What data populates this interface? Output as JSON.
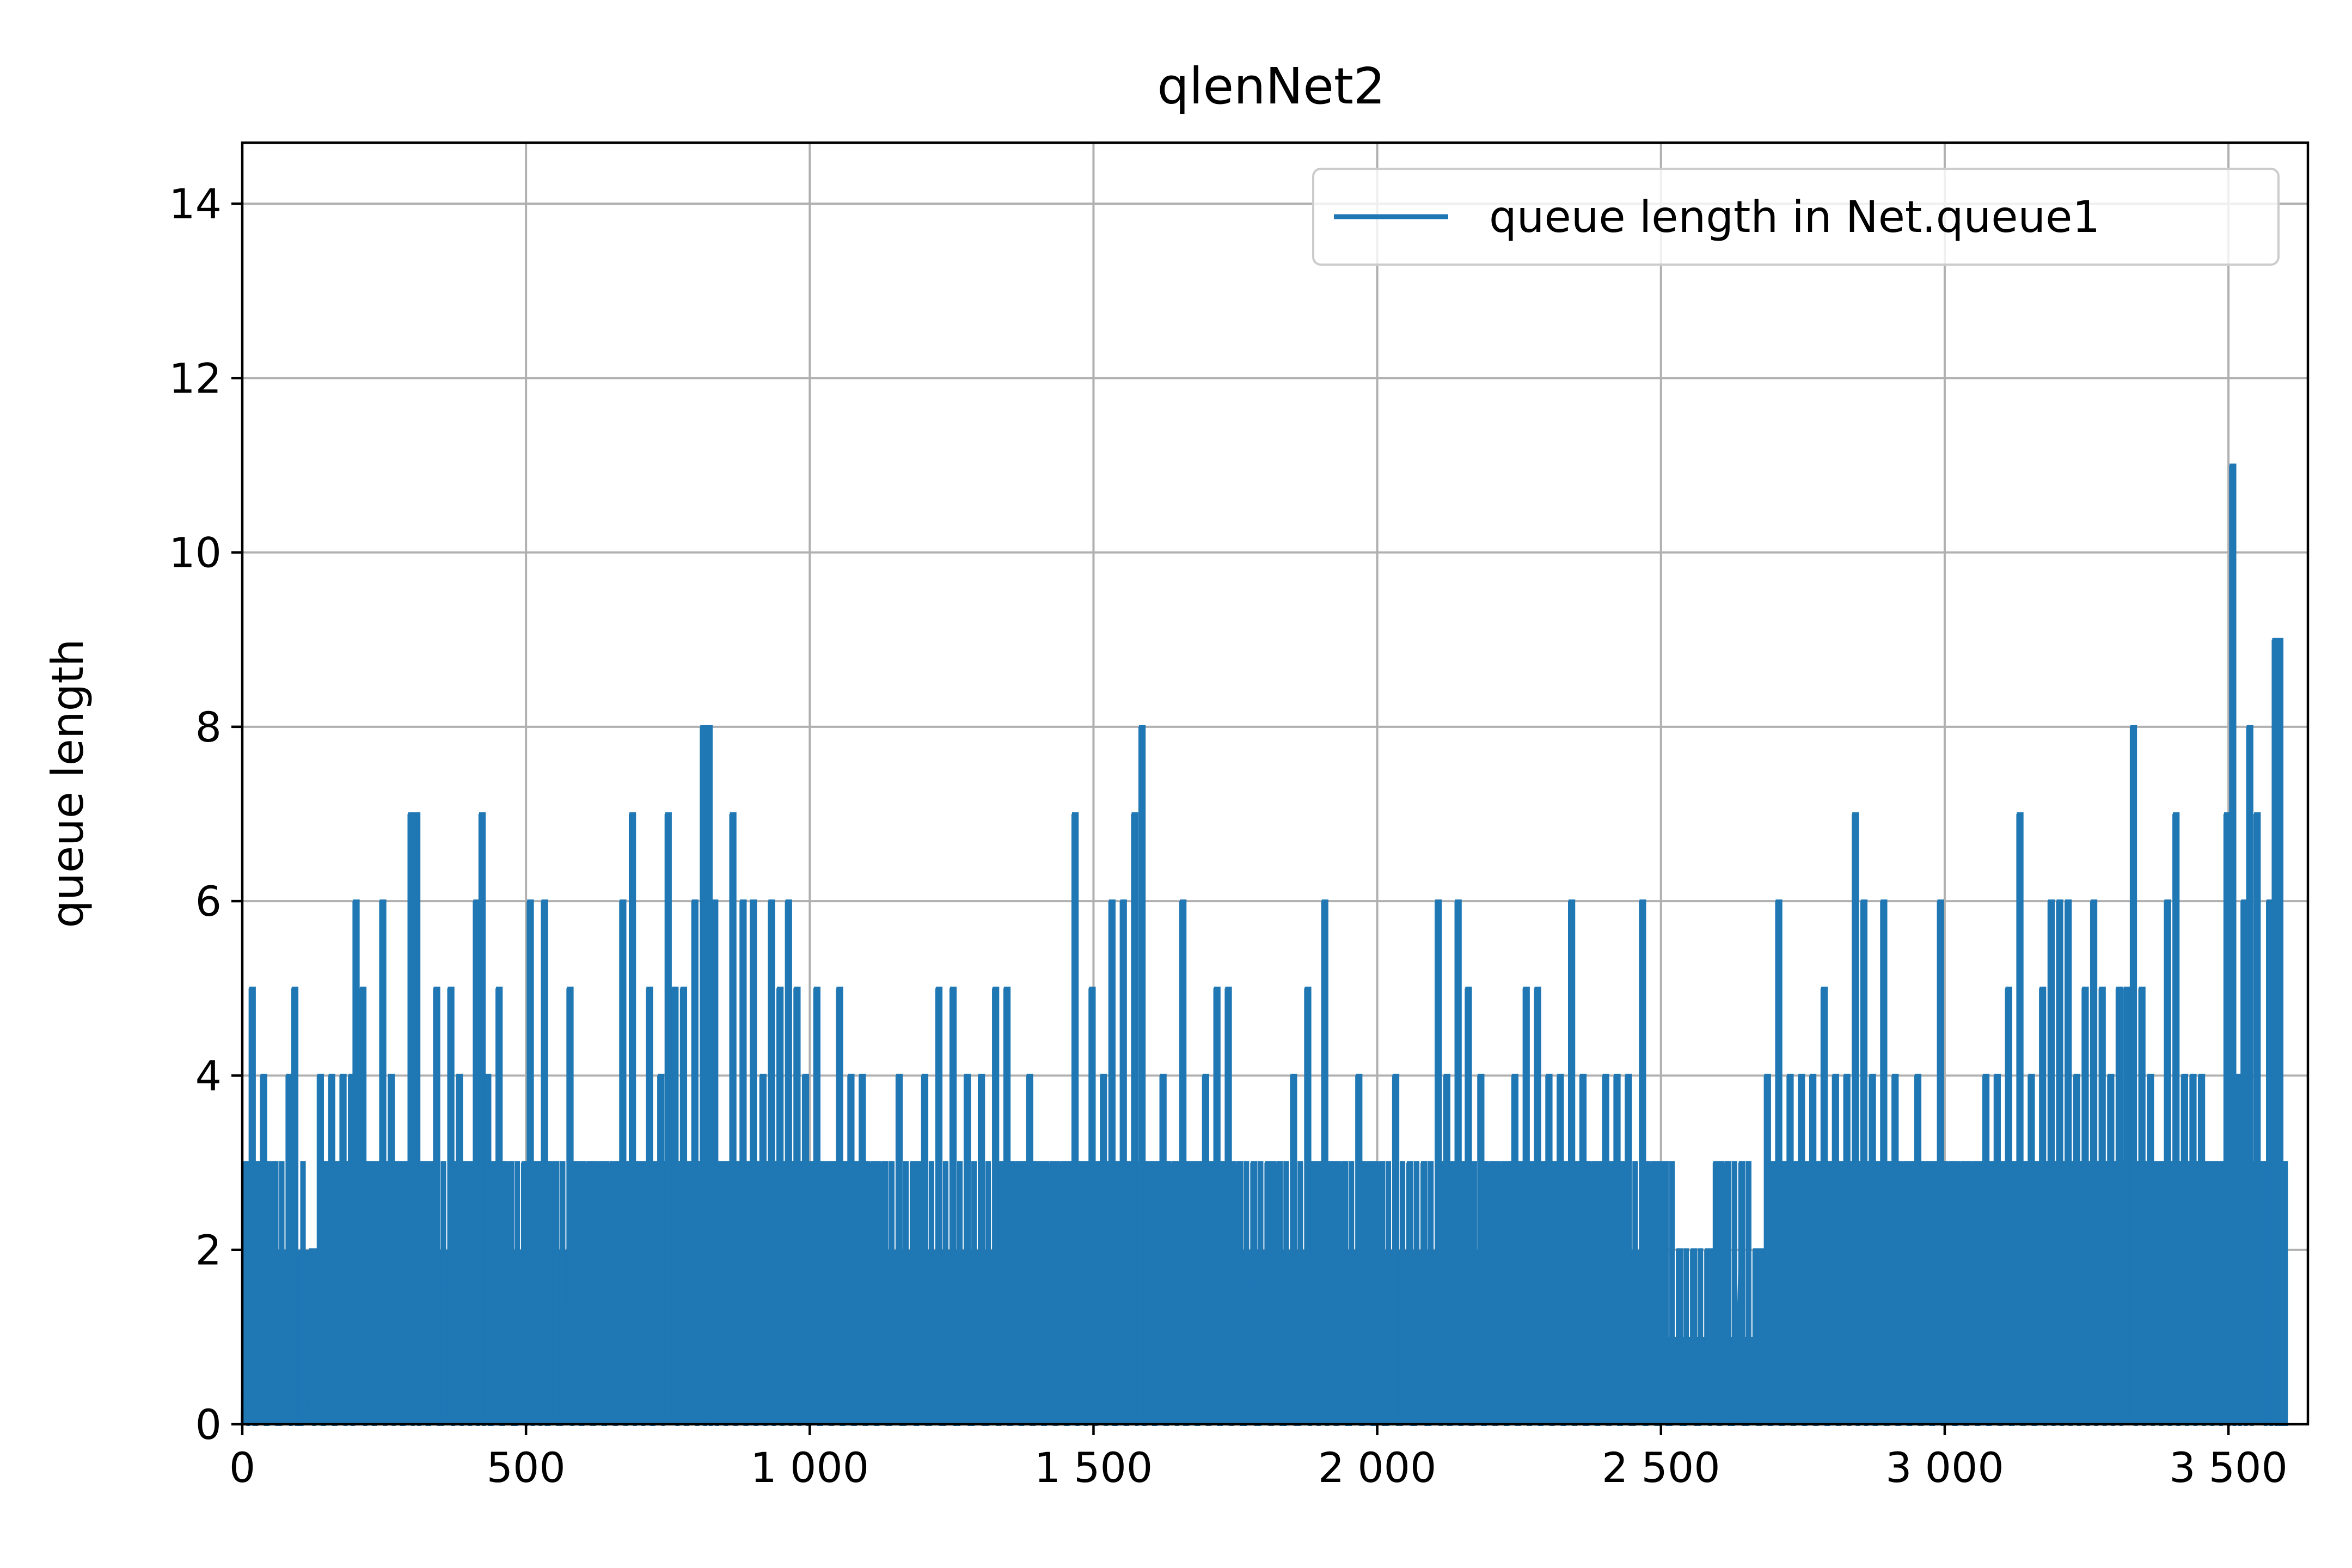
{
  "chart_data": {
    "type": "line",
    "title": "qlenNet2",
    "xlabel": "",
    "ylabel": "queue length",
    "xlim": [
      0,
      3640
    ],
    "ylim": [
      0,
      14.7
    ],
    "grid": true,
    "legend_position": "top-right",
    "x_ticks": [
      0,
      500,
      1000,
      1500,
      2000,
      2500,
      3000,
      3500
    ],
    "x_tick_labels": [
      "0",
      "500",
      "1 000",
      "1 500",
      "2 000",
      "2 500",
      "3 000",
      "3 500"
    ],
    "y_ticks": [
      0,
      2,
      4,
      6,
      8,
      10,
      12,
      14
    ],
    "y_tick_labels": [
      "0",
      "2",
      "4",
      "6",
      "8",
      "10",
      "12",
      "14"
    ],
    "series": [
      {
        "name": "queue length in Net.queue1",
        "color": "#1f77b4",
        "style": "steps-post",
        "x_end": 3600,
        "peaks": [
          {
            "x": 5,
            "y": 3
          },
          {
            "x": 15,
            "y": 5
          },
          {
            "x": 35,
            "y": 4
          },
          {
            "x": 55,
            "y": 3
          },
          {
            "x": 80,
            "y": 4
          },
          {
            "x": 90,
            "y": 5
          },
          {
            "x": 120,
            "y": 2
          },
          {
            "x": 135,
            "y": 4
          },
          {
            "x": 155,
            "y": 4
          },
          {
            "x": 175,
            "y": 4
          },
          {
            "x": 190,
            "y": 4
          },
          {
            "x": 198,
            "y": 6
          },
          {
            "x": 210,
            "y": 5
          },
          {
            "x": 225,
            "y": 3
          },
          {
            "x": 245,
            "y": 6
          },
          {
            "x": 260,
            "y": 4
          },
          {
            "x": 275,
            "y": 3
          },
          {
            "x": 295,
            "y": 7
          },
          {
            "x": 305,
            "y": 7
          },
          {
            "x": 320,
            "y": 3
          },
          {
            "x": 340,
            "y": 5
          },
          {
            "x": 365,
            "y": 5
          },
          {
            "x": 380,
            "y": 4
          },
          {
            "x": 395,
            "y": 3
          },
          {
            "x": 410,
            "y": 6
          },
          {
            "x": 420,
            "y": 7
          },
          {
            "x": 430,
            "y": 4
          },
          {
            "x": 450,
            "y": 5
          },
          {
            "x": 470,
            "y": 3
          },
          {
            "x": 495,
            "y": 3
          },
          {
            "x": 505,
            "y": 6
          },
          {
            "x": 520,
            "y": 3
          },
          {
            "x": 530,
            "y": 6
          },
          {
            "x": 550,
            "y": 3
          },
          {
            "x": 575,
            "y": 5
          },
          {
            "x": 590,
            "y": 3
          },
          {
            "x": 610,
            "y": 3
          },
          {
            "x": 630,
            "y": 3
          },
          {
            "x": 650,
            "y": 3
          },
          {
            "x": 668,
            "y": 6
          },
          {
            "x": 685,
            "y": 7
          },
          {
            "x": 700,
            "y": 3
          },
          {
            "x": 715,
            "y": 5
          },
          {
            "x": 735,
            "y": 4
          },
          {
            "x": 748,
            "y": 7
          },
          {
            "x": 760,
            "y": 5
          },
          {
            "x": 775,
            "y": 5
          },
          {
            "x": 795,
            "y": 6
          },
          {
            "x": 810,
            "y": 8
          },
          {
            "x": 820,
            "y": 8
          },
          {
            "x": 830,
            "y": 6
          },
          {
            "x": 845,
            "y": 3
          },
          {
            "x": 862,
            "y": 7
          },
          {
            "x": 880,
            "y": 6
          },
          {
            "x": 898,
            "y": 6
          },
          {
            "x": 915,
            "y": 4
          },
          {
            "x": 930,
            "y": 6
          },
          {
            "x": 945,
            "y": 5
          },
          {
            "x": 960,
            "y": 6
          },
          {
            "x": 975,
            "y": 5
          },
          {
            "x": 990,
            "y": 4
          },
          {
            "x": 1010,
            "y": 5
          },
          {
            "x": 1030,
            "y": 3
          },
          {
            "x": 1050,
            "y": 5
          },
          {
            "x": 1070,
            "y": 4
          },
          {
            "x": 1090,
            "y": 4
          },
          {
            "x": 1110,
            "y": 3
          },
          {
            "x": 1130,
            "y": 3
          },
          {
            "x": 1155,
            "y": 4
          },
          {
            "x": 1180,
            "y": 3
          },
          {
            "x": 1200,
            "y": 4
          },
          {
            "x": 1225,
            "y": 5
          },
          {
            "x": 1250,
            "y": 5
          },
          {
            "x": 1275,
            "y": 4
          },
          {
            "x": 1300,
            "y": 4
          },
          {
            "x": 1325,
            "y": 5
          },
          {
            "x": 1345,
            "y": 5
          },
          {
            "x": 1365,
            "y": 3
          },
          {
            "x": 1385,
            "y": 4
          },
          {
            "x": 1405,
            "y": 3
          },
          {
            "x": 1425,
            "y": 3
          },
          {
            "x": 1445,
            "y": 3
          },
          {
            "x": 1465,
            "y": 7
          },
          {
            "x": 1480,
            "y": 3
          },
          {
            "x": 1495,
            "y": 5
          },
          {
            "x": 1515,
            "y": 4
          },
          {
            "x": 1530,
            "y": 6
          },
          {
            "x": 1550,
            "y": 6
          },
          {
            "x": 1570,
            "y": 7
          },
          {
            "x": 1583,
            "y": 8
          },
          {
            "x": 1600,
            "y": 3
          },
          {
            "x": 1620,
            "y": 4
          },
          {
            "x": 1640,
            "y": 3
          },
          {
            "x": 1655,
            "y": 6
          },
          {
            "x": 1675,
            "y": 3
          },
          {
            "x": 1695,
            "y": 4
          },
          {
            "x": 1715,
            "y": 5
          },
          {
            "x": 1735,
            "y": 5
          },
          {
            "x": 1755,
            "y": 3
          },
          {
            "x": 1780,
            "y": 3
          },
          {
            "x": 1805,
            "y": 3
          },
          {
            "x": 1825,
            "y": 3
          },
          {
            "x": 1850,
            "y": 4
          },
          {
            "x": 1875,
            "y": 5
          },
          {
            "x": 1890,
            "y": 3
          },
          {
            "x": 1905,
            "y": 6
          },
          {
            "x": 1920,
            "y": 3
          },
          {
            "x": 1940,
            "y": 3
          },
          {
            "x": 1965,
            "y": 4
          },
          {
            "x": 1985,
            "y": 3
          },
          {
            "x": 2005,
            "y": 3
          },
          {
            "x": 2030,
            "y": 4
          },
          {
            "x": 2055,
            "y": 3
          },
          {
            "x": 2080,
            "y": 3
          },
          {
            "x": 2105,
            "y": 6
          },
          {
            "x": 2120,
            "y": 4
          },
          {
            "x": 2140,
            "y": 6
          },
          {
            "x": 2158,
            "y": 5
          },
          {
            "x": 2180,
            "y": 4
          },
          {
            "x": 2200,
            "y": 3
          },
          {
            "x": 2220,
            "y": 3
          },
          {
            "x": 2240,
            "y": 4
          },
          {
            "x": 2260,
            "y": 5
          },
          {
            "x": 2280,
            "y": 5
          },
          {
            "x": 2300,
            "y": 4
          },
          {
            "x": 2320,
            "y": 4
          },
          {
            "x": 2340,
            "y": 6
          },
          {
            "x": 2360,
            "y": 4
          },
          {
            "x": 2380,
            "y": 3
          },
          {
            "x": 2400,
            "y": 4
          },
          {
            "x": 2420,
            "y": 4
          },
          {
            "x": 2440,
            "y": 4
          },
          {
            "x": 2465,
            "y": 6
          },
          {
            "x": 2485,
            "y": 3
          },
          {
            "x": 2505,
            "y": 3
          },
          {
            "x": 2530,
            "y": 2
          },
          {
            "x": 2555,
            "y": 2
          },
          {
            "x": 2580,
            "y": 2
          },
          {
            "x": 2595,
            "y": 3
          },
          {
            "x": 2615,
            "y": 3
          },
          {
            "x": 2640,
            "y": 3
          },
          {
            "x": 2665,
            "y": 2
          },
          {
            "x": 2685,
            "y": 4
          },
          {
            "x": 2705,
            "y": 6
          },
          {
            "x": 2725,
            "y": 4
          },
          {
            "x": 2745,
            "y": 4
          },
          {
            "x": 2765,
            "y": 4
          },
          {
            "x": 2785,
            "y": 5
          },
          {
            "x": 2805,
            "y": 4
          },
          {
            "x": 2825,
            "y": 4
          },
          {
            "x": 2840,
            "y": 7
          },
          {
            "x": 2855,
            "y": 6
          },
          {
            "x": 2870,
            "y": 4
          },
          {
            "x": 2890,
            "y": 6
          },
          {
            "x": 2910,
            "y": 4
          },
          {
            "x": 2930,
            "y": 3
          },
          {
            "x": 2950,
            "y": 4
          },
          {
            "x": 2970,
            "y": 3
          },
          {
            "x": 2990,
            "y": 6
          },
          {
            "x": 3010,
            "y": 3
          },
          {
            "x": 3030,
            "y": 3
          },
          {
            "x": 3050,
            "y": 3
          },
          {
            "x": 3070,
            "y": 4
          },
          {
            "x": 3090,
            "y": 4
          },
          {
            "x": 3110,
            "y": 5
          },
          {
            "x": 3130,
            "y": 7
          },
          {
            "x": 3150,
            "y": 4
          },
          {
            "x": 3170,
            "y": 5
          },
          {
            "x": 3185,
            "y": 6
          },
          {
            "x": 3200,
            "y": 6
          },
          {
            "x": 3215,
            "y": 6
          },
          {
            "x": 3230,
            "y": 4
          },
          {
            "x": 3245,
            "y": 5
          },
          {
            "x": 3260,
            "y": 6
          },
          {
            "x": 3275,
            "y": 5
          },
          {
            "x": 3290,
            "y": 4
          },
          {
            "x": 3305,
            "y": 5
          },
          {
            "x": 3318,
            "y": 5
          },
          {
            "x": 3330,
            "y": 8
          },
          {
            "x": 3345,
            "y": 5
          },
          {
            "x": 3360,
            "y": 4
          },
          {
            "x": 3375,
            "y": 3
          },
          {
            "x": 3390,
            "y": 6
          },
          {
            "x": 3405,
            "y": 7
          },
          {
            "x": 3420,
            "y": 4
          },
          {
            "x": 3435,
            "y": 4
          },
          {
            "x": 3450,
            "y": 4
          },
          {
            "x": 3465,
            "y": 3
          },
          {
            "x": 3480,
            "y": 3
          },
          {
            "x": 3495,
            "y": 7
          },
          {
            "x": 3505,
            "y": 11
          },
          {
            "x": 3515,
            "y": 4
          },
          {
            "x": 3525,
            "y": 6
          },
          {
            "x": 3535,
            "y": 8
          },
          {
            "x": 3548,
            "y": 7
          },
          {
            "x": 3560,
            "y": 3
          },
          {
            "x": 3570,
            "y": 6
          },
          {
            "x": 3580,
            "y": 9
          },
          {
            "x": 3588,
            "y": 9
          },
          {
            "x": 3596,
            "y": 3
          }
        ]
      }
    ]
  }
}
